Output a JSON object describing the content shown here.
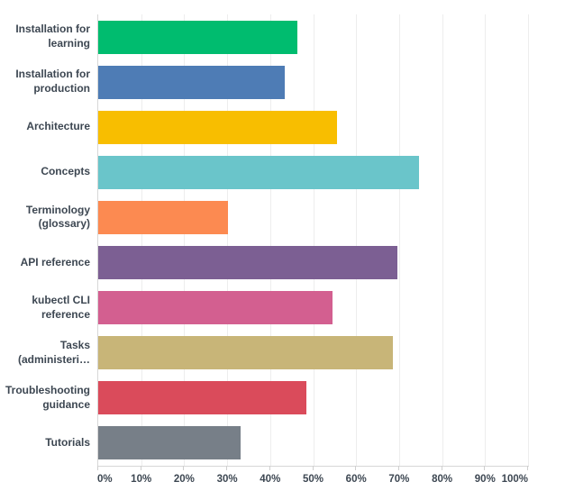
{
  "chart_data": {
    "type": "bar",
    "orientation": "horizontal",
    "categories": [
      "Installation for learning",
      "Installation for production",
      "Architecture",
      "Concepts",
      "Terminology (glossary)",
      "API reference",
      "kubectl CLI reference",
      "Tasks (administeri…",
      "Troubleshooting guidance",
      "Tutorials"
    ],
    "values": [
      46.3,
      43.4,
      55.6,
      74.7,
      30.2,
      69.5,
      54.5,
      68.5,
      48.4,
      33.2
    ],
    "bar_colors": [
      "#00bc6f",
      "#4e7cb5",
      "#f8be00",
      "#6ac5ca",
      "#fc8a51",
      "#7c5f93",
      "#d35f90",
      "#c8b578",
      "#da4b5b",
      "#777f88"
    ],
    "x_tick_labels": [
      "0%",
      "10%",
      "20%",
      "30%",
      "40%",
      "50%",
      "60%",
      "70%",
      "80%",
      "90%",
      "100%"
    ],
    "xlim": [
      0,
      100
    ],
    "grid": "vertical-only",
    "legend": "none"
  },
  "style": {
    "background": "#ffffff",
    "label_color": "#3d4752",
    "axis_line_color": "#d7d7d7",
    "gridline_color": "#ededed",
    "tick_color": "#cfcfcf"
  }
}
